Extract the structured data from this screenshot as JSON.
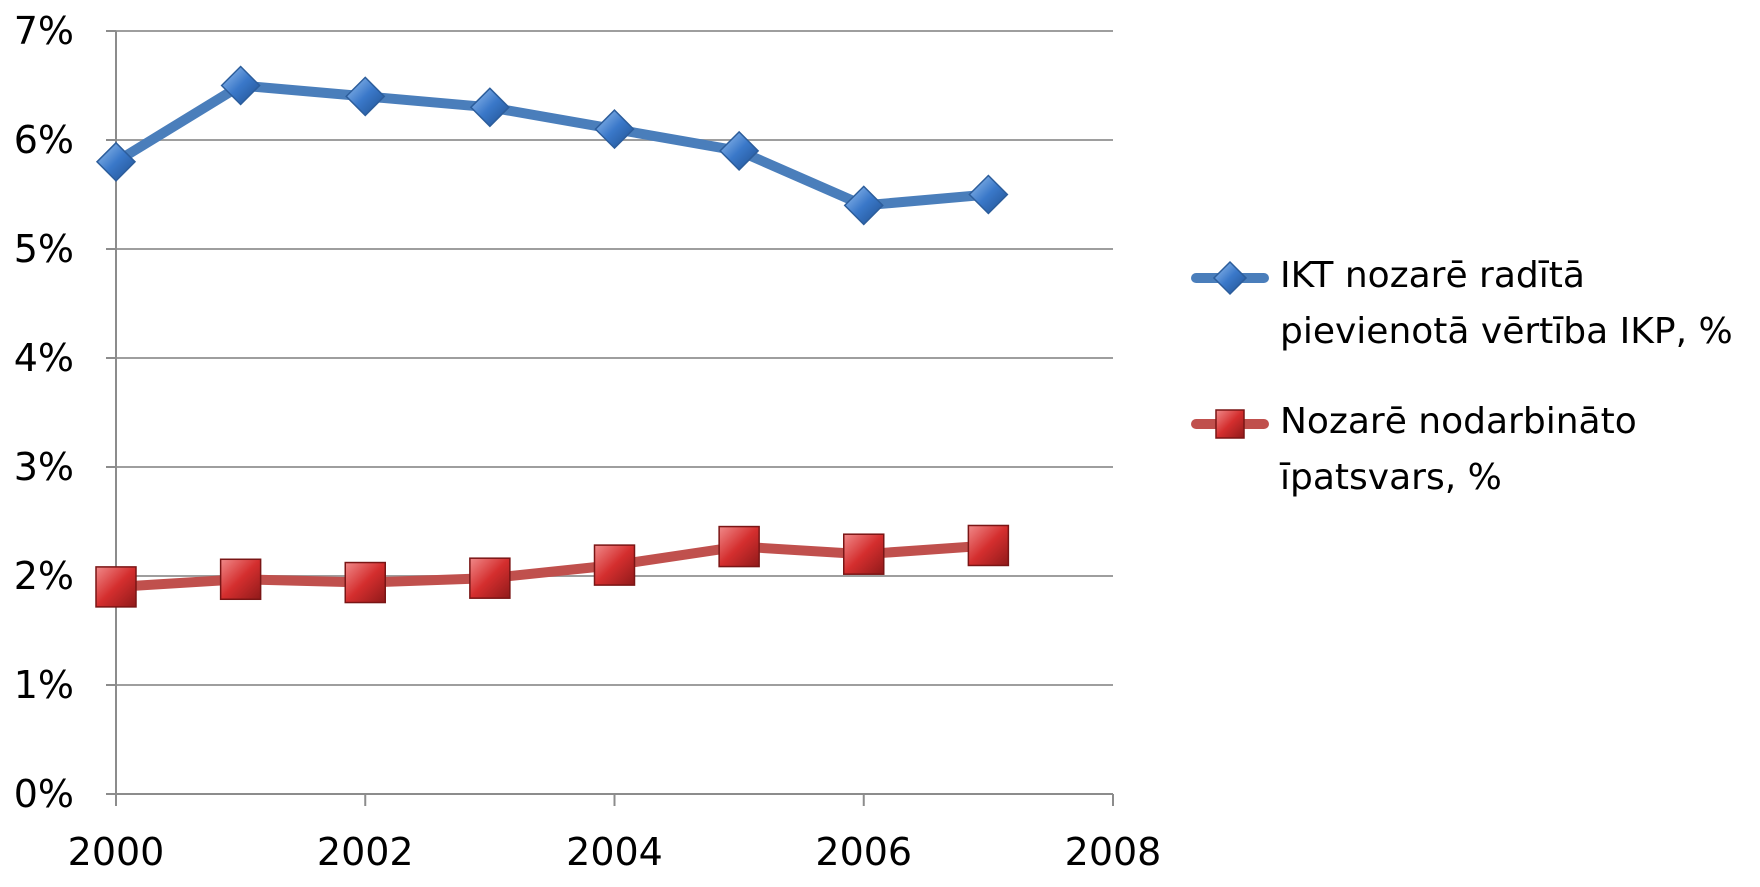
{
  "chart_data": {
    "type": "line",
    "x": [
      2000,
      2001,
      2002,
      2003,
      2004,
      2005,
      2006,
      2007
    ],
    "xlim": [
      2000,
      2008
    ],
    "ylim": [
      0,
      7
    ],
    "x_ticks": [
      "2000",
      "2002",
      "2004",
      "2006",
      "2008"
    ],
    "y_ticks": [
      "0%",
      "1%",
      "2%",
      "3%",
      "4%",
      "5%",
      "6%",
      "7%"
    ],
    "grid": "horizontal",
    "legend_position": "right",
    "series": [
      {
        "name": "IKT nozarē radītā pievienotā vērtība IKP, %",
        "color": "#4a7ebb",
        "marker_color": "#3a78c9",
        "marker": "diamond",
        "values": [
          5.8,
          6.5,
          6.4,
          6.3,
          6.1,
          5.9,
          5.4,
          5.5
        ]
      },
      {
        "name": "Nozarē nodarbināto īpatsvars, %",
        "color": "#c0504d",
        "marker_color": "#d42e2e",
        "marker": "square",
        "values": [
          1.9,
          1.97,
          1.94,
          1.98,
          2.1,
          2.27,
          2.2,
          2.28
        ]
      }
    ]
  }
}
